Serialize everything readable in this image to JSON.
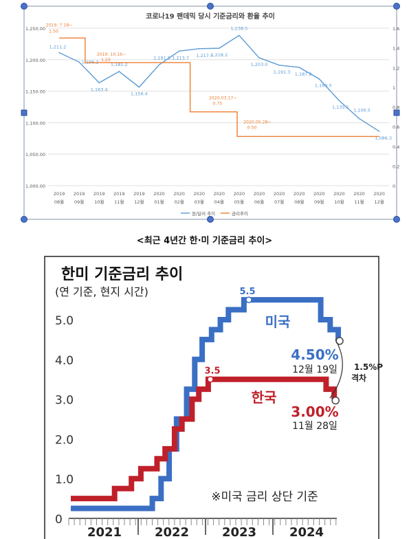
{
  "caption": "<최근 4년간 한·미 기준금리 추이>",
  "chart_data": [
    {
      "type": "line",
      "title": "코로나19 팬데믹 당시 기준금리와 환율 추이",
      "categories": [
        [
          "2019",
          "08월"
        ],
        [
          "2019",
          "09월"
        ],
        [
          "2019",
          "10월"
        ],
        [
          "2019",
          "11월"
        ],
        [
          "2019",
          "12월"
        ],
        [
          "2020",
          "01월"
        ],
        [
          "2020",
          "02월"
        ],
        [
          "2020",
          "03월"
        ],
        [
          "2020",
          "04월"
        ],
        [
          "2020",
          "05월"
        ],
        [
          "2020",
          "06월"
        ],
        [
          "2020",
          "07월"
        ],
        [
          "2020",
          "08월"
        ],
        [
          "2020",
          "09월"
        ],
        [
          "2020",
          "10월"
        ],
        [
          "2020",
          "11월"
        ],
        [
          "2020",
          "12월"
        ]
      ],
      "y_left": {
        "ticks": [
          "1,000.00",
          "1,050.00",
          "1,100.00",
          "1,150.00",
          "1,200.00",
          "1,250.00"
        ],
        "range": [
          1000,
          1250
        ]
      },
      "y_right": {
        "ticks": [
          "0",
          "0.2",
          "0.4",
          "0.6",
          "0.8",
          "1",
          "1.2",
          "1.4",
          "1.6"
        ],
        "range": [
          0,
          1.6
        ]
      },
      "series": [
        {
          "name": "원/달러 추이",
          "axis": "left",
          "color": "#5b9bd5",
          "values": [
            1211.2,
            1196.2,
            1163.4,
            1181.2,
            1156.4,
            1191.8,
            1213.7,
            1217.4,
            1218.2,
            1238.5,
            1203.0,
            1191.3,
            1187.8,
            1169.5,
            1135.1,
            1106.5,
            1086.3
          ],
          "labels": [
            "1,211.2",
            "1,196.2",
            "1,163.4",
            "1,181.2",
            "1,156.4",
            "1,191.8",
            "1,213.7",
            "1,217.4",
            "1,218.2",
            "1,238.5",
            "1,203.0",
            "1,191.3",
            "1,187.8",
            "1,169.5",
            "1,135.1",
            "1,106.5",
            "1,086.3"
          ]
        },
        {
          "name": "금리추이",
          "axis": "right",
          "color": "#ed7d31",
          "steps": [
            [
              -1,
              1.5
            ],
            [
              1.3,
              1.5
            ],
            [
              1.3,
              1.25
            ],
            [
              6.55,
              1.25
            ],
            [
              6.55,
              0.75
            ],
            [
              8.9,
              0.75
            ],
            [
              8.9,
              0.5
            ],
            [
              16,
              0.5
            ]
          ],
          "annotations": [
            {
              "line1": "2019. 7.18~",
              "line2": "1.50",
              "at": [
                0,
                1.5
              ]
            },
            {
              "line1": "2019. 10.16~",
              "line2": "1.25",
              "at": [
                2.2,
                1.25
              ]
            },
            {
              "line1": "2020.03.17~",
              "line2": "0.75",
              "at": [
                7.5,
                0.75
              ]
            },
            {
              "line1": "2020.05.28~",
              "line2": "0.50",
              "at": [
                9.5,
                0.5
              ]
            }
          ]
        }
      ],
      "legend": "bottom"
    },
    {
      "type": "line",
      "title": "한미 기준금리 추이",
      "subtitle": "(연 기준, 현지 시간)",
      "y_ticks": [
        "0",
        "1.0",
        "2.0",
        "3.0",
        "4.0",
        "5.0"
      ],
      "ylim": [
        0,
        5.5
      ],
      "x_ticks": [
        "2021",
        "2022",
        "2023",
        "2024"
      ],
      "note": "※미국 금리 상단 기준",
      "gap_label": [
        "1.5%P",
        "격차"
      ],
      "series": [
        {
          "name": "미국",
          "color": "#3a6fc4",
          "peak_label": "5.5",
          "end_label": "4.50%",
          "end_date": "12월 19일",
          "steps": [
            [
              2021.0,
              0.25
            ],
            [
              2022.21,
              0.25
            ],
            [
              2022.21,
              0.5
            ],
            [
              2022.34,
              0.5
            ],
            [
              2022.34,
              1.0
            ],
            [
              2022.46,
              1.0
            ],
            [
              2022.46,
              1.75
            ],
            [
              2022.57,
              1.75
            ],
            [
              2022.57,
              2.5
            ],
            [
              2022.72,
              2.5
            ],
            [
              2022.72,
              3.25
            ],
            [
              2022.84,
              3.25
            ],
            [
              2022.84,
              4.0
            ],
            [
              2022.95,
              4.0
            ],
            [
              2022.95,
              4.5
            ],
            [
              2023.09,
              4.5
            ],
            [
              2023.09,
              4.75
            ],
            [
              2023.22,
              4.75
            ],
            [
              2023.22,
              5.0
            ],
            [
              2023.34,
              5.0
            ],
            [
              2023.34,
              5.25
            ],
            [
              2023.57,
              5.25
            ],
            [
              2023.57,
              5.5
            ],
            [
              2024.71,
              5.5
            ],
            [
              2024.71,
              5.0
            ],
            [
              2024.85,
              5.0
            ],
            [
              2024.85,
              4.75
            ],
            [
              2024.97,
              4.75
            ],
            [
              2024.97,
              4.5
            ]
          ]
        },
        {
          "name": "한국",
          "color": "#c0202a",
          "peak_label": "3.5",
          "end_label": "3.00%",
          "end_date": "11월 28일",
          "steps": [
            [
              2021.0,
              0.5
            ],
            [
              2021.65,
              0.5
            ],
            [
              2021.65,
              0.75
            ],
            [
              2021.9,
              0.75
            ],
            [
              2021.9,
              1.0
            ],
            [
              2022.04,
              1.0
            ],
            [
              2022.04,
              1.25
            ],
            [
              2022.28,
              1.25
            ],
            [
              2022.28,
              1.5
            ],
            [
              2022.4,
              1.5
            ],
            [
              2022.4,
              1.75
            ],
            [
              2022.54,
              1.75
            ],
            [
              2022.54,
              2.25
            ],
            [
              2022.65,
              2.25
            ],
            [
              2022.65,
              2.5
            ],
            [
              2022.8,
              2.5
            ],
            [
              2022.8,
              3.0
            ],
            [
              2022.9,
              3.0
            ],
            [
              2022.9,
              3.25
            ],
            [
              2023.04,
              3.25
            ],
            [
              2023.04,
              3.5
            ],
            [
              2024.79,
              3.5
            ],
            [
              2024.79,
              3.25
            ],
            [
              2024.91,
              3.25
            ],
            [
              2024.91,
              3.0
            ]
          ]
        }
      ]
    }
  ]
}
